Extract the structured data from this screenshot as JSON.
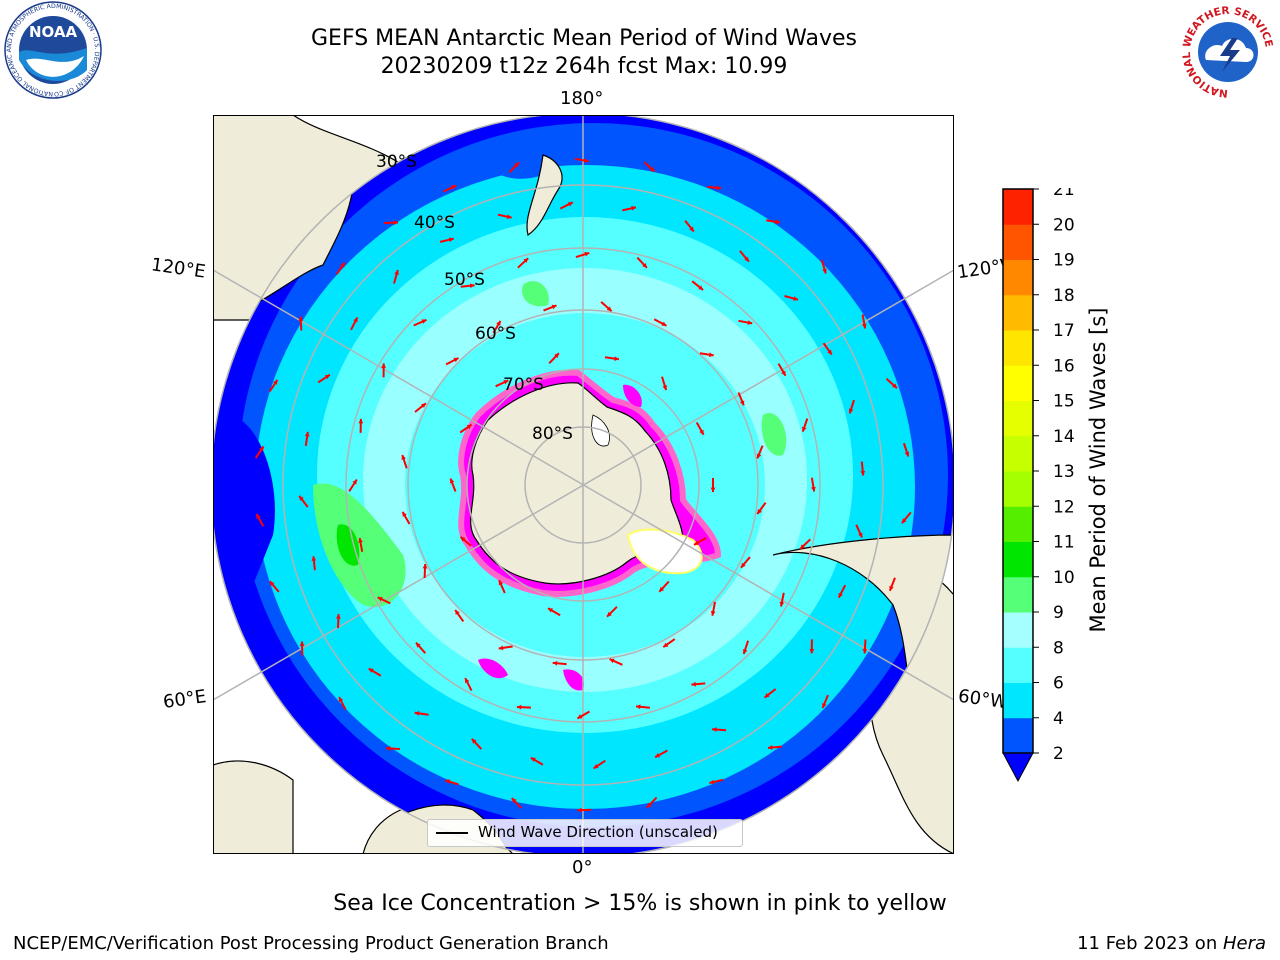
{
  "header": {
    "title_line1": "GEFS MEAN Antarctic Mean Period of Wind Waves",
    "title_line2": "20230209 t12z 264h fcst   Max: 10.99"
  },
  "logos": {
    "left": {
      "text": "NOAA",
      "ring_text": "NATIONAL OCEANIC AND ATMOSPHERIC ADMINISTRATION · U.S. DEPARTMENT OF COMMERCE"
    },
    "right": {
      "ring_text": "NATIONAL WEATHER SERVICE"
    }
  },
  "map": {
    "longitude_labels": {
      "top": "180°",
      "bottom": "0°",
      "upper_left": "120°E",
      "upper_right": "120°W",
      "lower_left": "60°E",
      "lower_right": "60°W"
    },
    "latitude_labels": [
      "30°S",
      "40°S",
      "50°S",
      "60°S",
      "70°S",
      "80°S"
    ],
    "legend_label": "Wind Wave Direction (unscaled)",
    "colors": {
      "land": "#efedda",
      "arrow": "#ff0000",
      "grid": "#b3b3b3",
      "ice": [
        "#ff00ff",
        "#ff66cc",
        "#ffffff",
        "#ffff66"
      ]
    }
  },
  "colorbar": {
    "label": "Mean Period of Wind Waves [s]",
    "ticks": [
      "2",
      "4",
      "6",
      "8",
      "9",
      "10",
      "11",
      "12",
      "13",
      "14",
      "15",
      "16",
      "17",
      "18",
      "19",
      "20",
      "21"
    ],
    "colors": [
      "#0055ff",
      "#00e6ff",
      "#55ffff",
      "#a6ffff",
      "#55ff77",
      "#00e600",
      "#55ee00",
      "#a6ff00",
      "#c6ff00",
      "#e6ff00",
      "#ffff00",
      "#ffe600",
      "#ffbb00",
      "#ff8800",
      "#ff5500",
      "#ff2200"
    ],
    "under_color": "#0000ff",
    "extend": "min"
  },
  "caption": "Sea Ice Concentration > 15% is shown in pink to yellow",
  "footer": {
    "left": "NCEP/EMC/Verification Post Processing Product Generation Branch",
    "right_prefix": "11 Feb 2023 on ",
    "right_system": "Hera"
  }
}
